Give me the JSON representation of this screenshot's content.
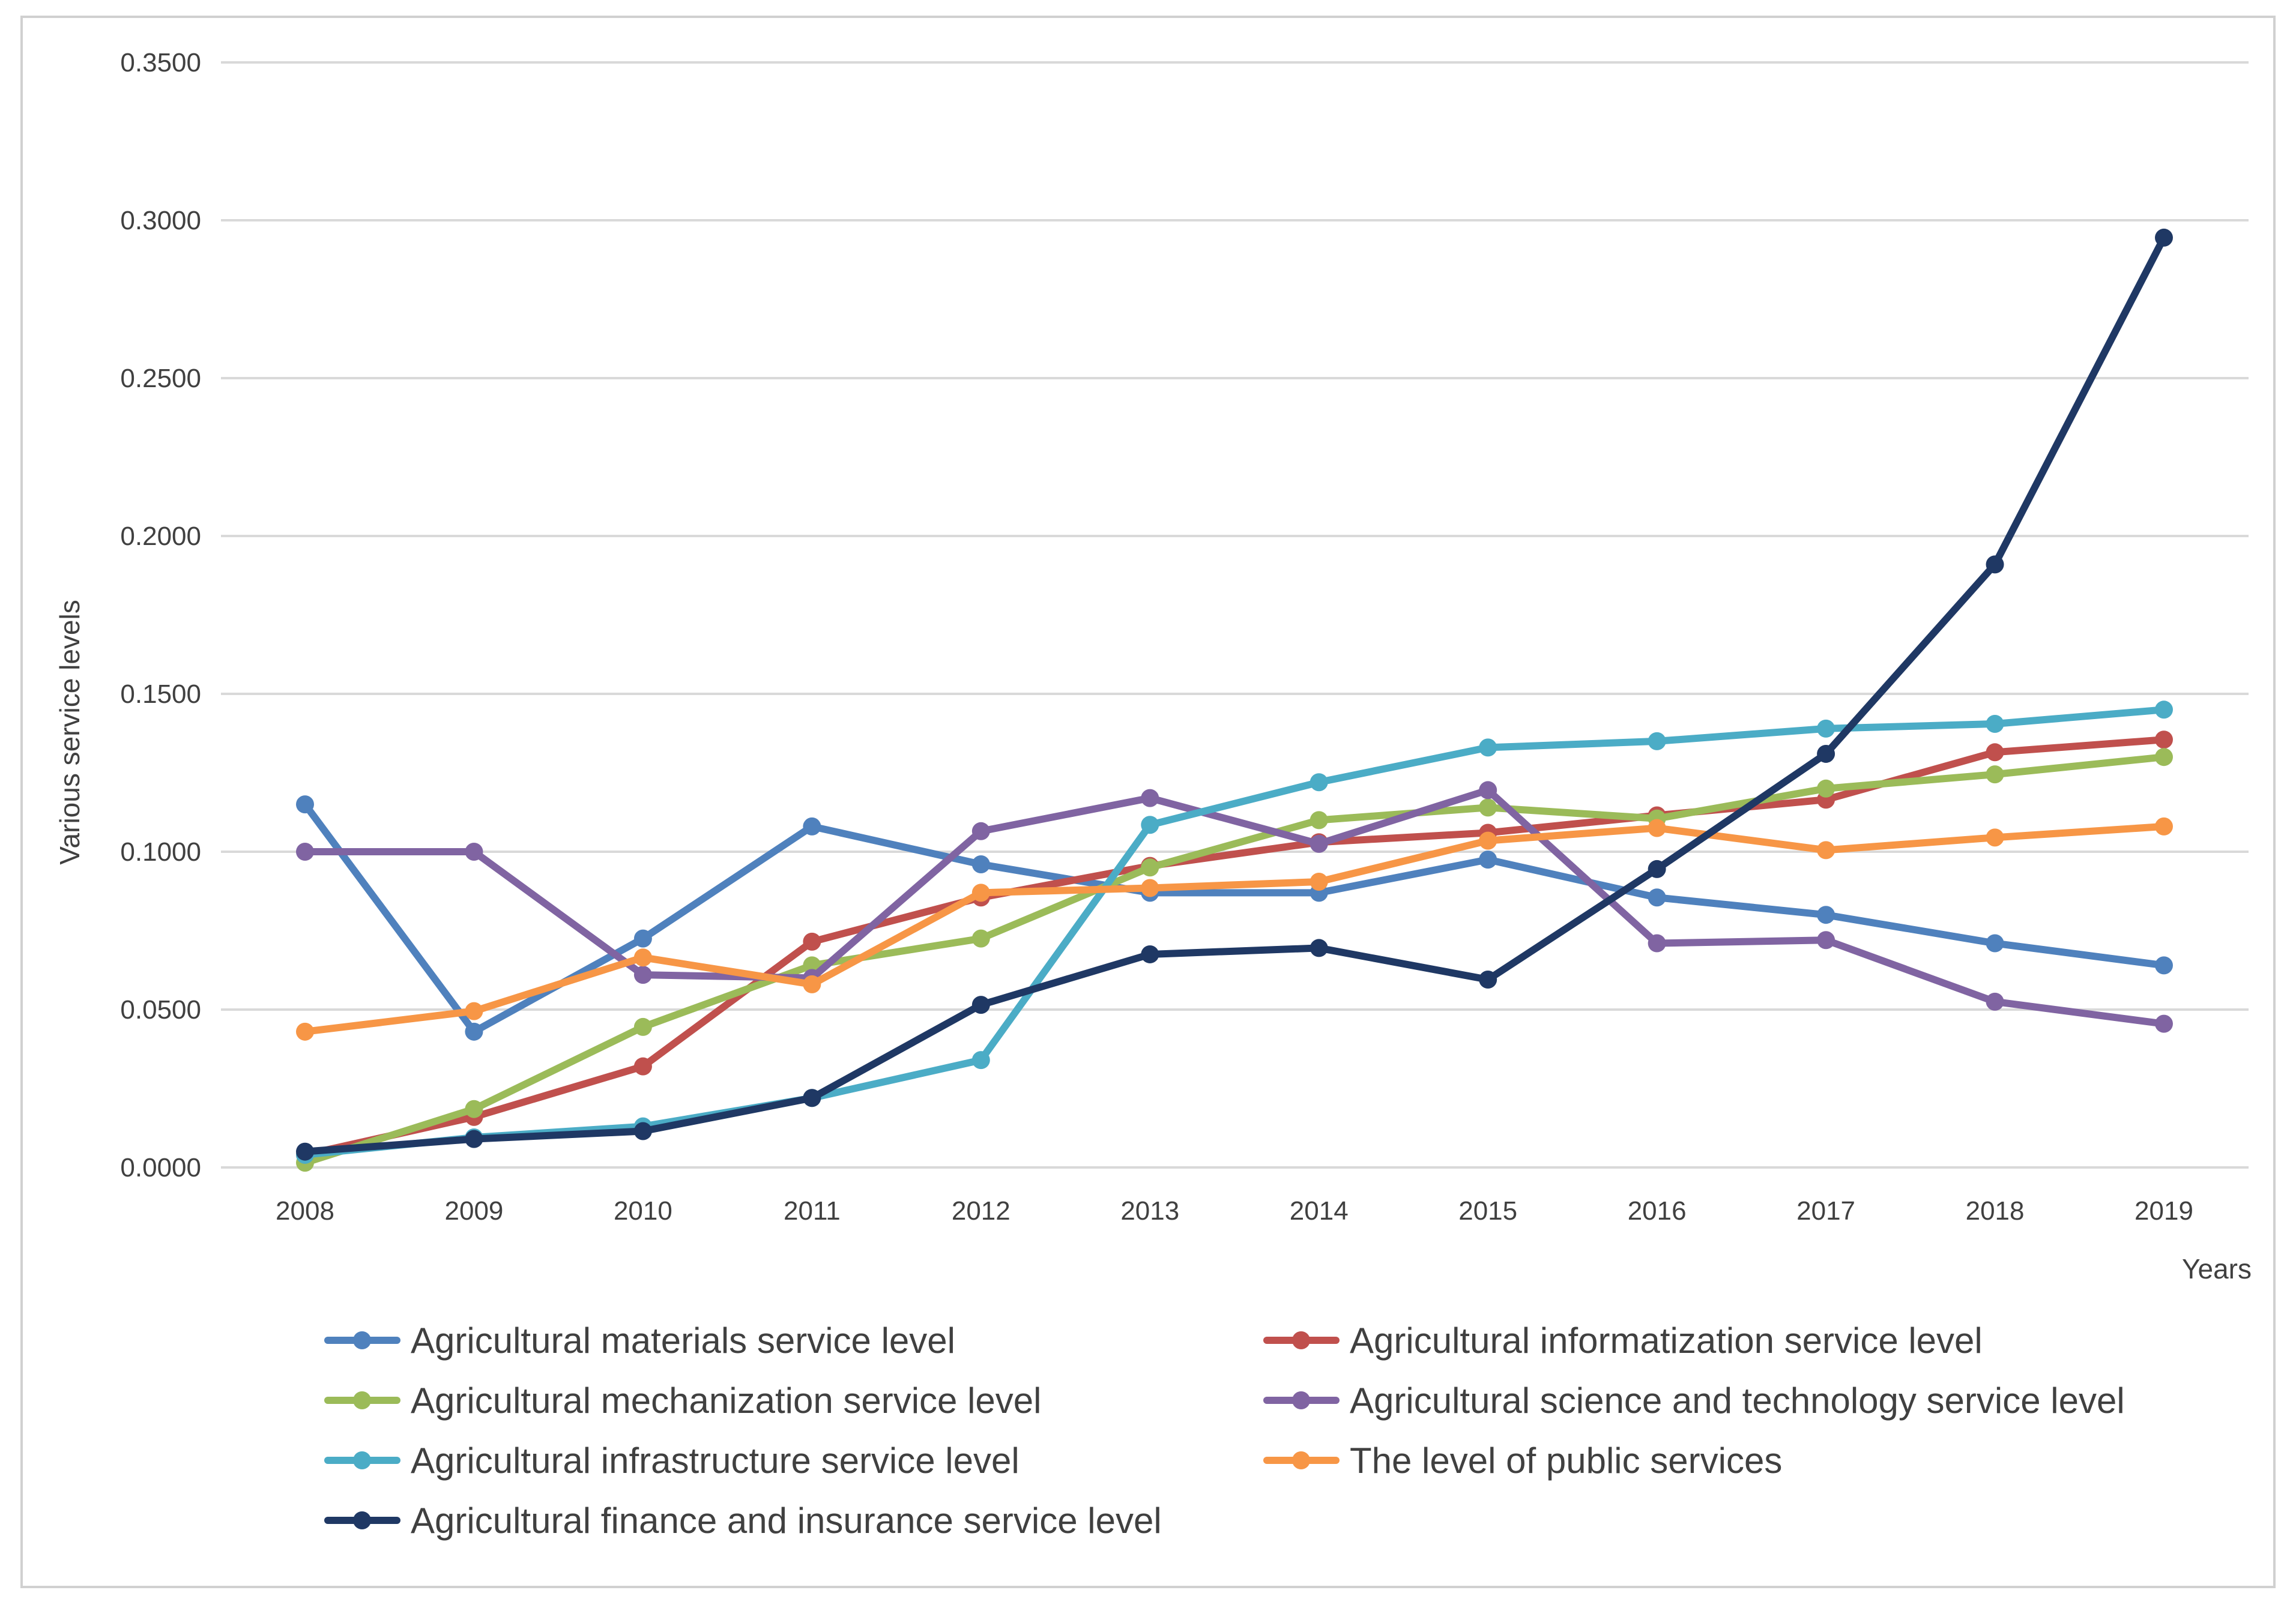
{
  "chart_data": {
    "type": "line",
    "title": "",
    "xlabel": "Years",
    "ylabel": "Various service levels",
    "categories": [
      "2008",
      "2009",
      "2010",
      "2011",
      "2012",
      "2013",
      "2014",
      "2015",
      "2016",
      "2017",
      "2018",
      "2019"
    ],
    "ylim": [
      0,
      0.35
    ],
    "yticks": [
      "0.0000",
      "0.0500",
      "0.1000",
      "0.1500",
      "0.2000",
      "0.2500",
      "0.3000",
      "0.3500"
    ],
    "ytick_values": [
      0,
      0.05,
      0.1,
      0.15,
      0.2,
      0.25,
      0.3,
      0.35
    ],
    "grid": true,
    "legend_position": "bottom",
    "series": [
      {
        "name": "Agricultural materials service level",
        "color": "#4f81bd",
        "values": [
          0.115,
          0.043,
          0.0725,
          0.108,
          0.096,
          0.087,
          0.087,
          0.0975,
          0.0855,
          0.08,
          0.071,
          0.064
        ]
      },
      {
        "name": "Agricultural informatization service level",
        "color": "#c0504d",
        "values": [
          0.004,
          0.016,
          0.032,
          0.0715,
          0.0855,
          0.0955,
          0.103,
          0.106,
          0.1115,
          0.1165,
          0.1315,
          0.1355
        ]
      },
      {
        "name": "Agricultural mechanization service level",
        "color": "#9bbb59",
        "values": [
          0.0015,
          0.0185,
          0.0445,
          0.064,
          0.0725,
          0.095,
          0.11,
          0.114,
          0.1105,
          0.12,
          0.1245,
          0.13
        ]
      },
      {
        "name": "Agricultural science and technology service level",
        "color": "#8064a2",
        "values": [
          0.1,
          0.1,
          0.061,
          0.06,
          0.1065,
          0.117,
          0.1025,
          0.1195,
          0.071,
          0.072,
          0.0525,
          0.0455
        ]
      },
      {
        "name": "Agricultural infrastructure service level",
        "color": "#4bacc6",
        "values": [
          0.004,
          0.0095,
          0.013,
          0.022,
          0.034,
          0.1085,
          0.122,
          0.133,
          0.135,
          0.139,
          0.1405,
          0.145
        ]
      },
      {
        "name": "The level of public services",
        "color": "#f79646",
        "values": [
          0.043,
          0.0495,
          0.0665,
          0.058,
          0.087,
          0.0885,
          0.0905,
          0.1035,
          0.1075,
          0.1005,
          0.1045,
          0.108
        ]
      },
      {
        "name": "Agricultural finance and insurance service level",
        "color": "#1f3864",
        "values": [
          0.005,
          0.009,
          0.0115,
          0.022,
          0.0515,
          0.0675,
          0.0695,
          0.0595,
          0.0945,
          0.131,
          0.191,
          0.2945
        ]
      }
    ]
  }
}
